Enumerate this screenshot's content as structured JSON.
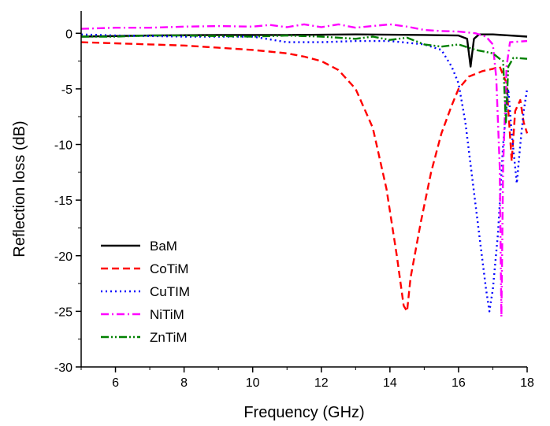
{
  "chart_data": {
    "type": "line",
    "title": "",
    "xlabel": "Frequency (GHz)",
    "ylabel": "Reflection loss (dB)",
    "xlim": [
      5,
      18
    ],
    "ylim": [
      -30,
      2
    ],
    "xticks": [
      6,
      8,
      10,
      12,
      14,
      16,
      18
    ],
    "yticks": [
      0,
      -5,
      -10,
      -15,
      -20,
      -25,
      -30
    ],
    "legend_position": "bottom-left",
    "grid": false,
    "series": [
      {
        "name": "BaM",
        "color": "#000000",
        "dash": "solid",
        "points": [
          [
            5,
            -0.3
          ],
          [
            7,
            -0.2
          ],
          [
            9,
            -0.15
          ],
          [
            11,
            -0.15
          ],
          [
            13,
            -0.1
          ],
          [
            15,
            -0.15
          ],
          [
            16,
            -0.2
          ],
          [
            16.25,
            -0.5
          ],
          [
            16.35,
            -3.0
          ],
          [
            16.45,
            -0.5
          ],
          [
            16.6,
            -0.1
          ],
          [
            17,
            -0.1
          ],
          [
            17.5,
            -0.2
          ],
          [
            18,
            -0.3
          ]
        ]
      },
      {
        "name": "CoTiM",
        "color": "#ff0000",
        "dash": "dashed",
        "points": [
          [
            5,
            -0.8
          ],
          [
            6,
            -0.9
          ],
          [
            7,
            -1.0
          ],
          [
            8,
            -1.1
          ],
          [
            9,
            -1.3
          ],
          [
            10,
            -1.5
          ],
          [
            11,
            -1.8
          ],
          [
            11.5,
            -2.1
          ],
          [
            12,
            -2.5
          ],
          [
            12.5,
            -3.3
          ],
          [
            13,
            -5.0
          ],
          [
            13.5,
            -8.5
          ],
          [
            13.9,
            -14
          ],
          [
            14.2,
            -20
          ],
          [
            14.4,
            -24.5
          ],
          [
            14.5,
            -25.0
          ],
          [
            14.6,
            -22
          ],
          [
            14.9,
            -17
          ],
          [
            15.2,
            -12.5
          ],
          [
            15.5,
            -9
          ],
          [
            15.8,
            -6.5
          ],
          [
            16,
            -5
          ],
          [
            16.3,
            -3.9
          ],
          [
            16.7,
            -3.4
          ],
          [
            17.0,
            -3.2
          ],
          [
            17.2,
            -3.0
          ],
          [
            17.4,
            -4.5
          ],
          [
            17.55,
            -11.5
          ],
          [
            17.65,
            -7
          ],
          [
            17.8,
            -6
          ],
          [
            17.9,
            -8
          ],
          [
            18,
            -9
          ]
        ]
      },
      {
        "name": "CuTIM",
        "color": "#0000ff",
        "dash": "dotted",
        "points": [
          [
            5,
            -0.1
          ],
          [
            6,
            -0.2
          ],
          [
            8,
            -0.3
          ],
          [
            10,
            -0.3
          ],
          [
            11,
            -0.8
          ],
          [
            12,
            -0.8
          ],
          [
            13,
            -0.7
          ],
          [
            14,
            -0.7
          ],
          [
            15,
            -1.0
          ],
          [
            15.5,
            -1.5
          ],
          [
            15.8,
            -3.0
          ],
          [
            16,
            -4.5
          ],
          [
            16.2,
            -8
          ],
          [
            16.4,
            -13
          ],
          [
            16.6,
            -18
          ],
          [
            16.8,
            -23
          ],
          [
            16.9,
            -25.0
          ],
          [
            17.0,
            -23
          ],
          [
            17.15,
            -18
          ],
          [
            17.3,
            -10
          ],
          [
            17.45,
            -5
          ],
          [
            17.55,
            -9
          ],
          [
            17.7,
            -13.5
          ],
          [
            17.8,
            -10
          ],
          [
            17.9,
            -7
          ],
          [
            18,
            -5
          ]
        ]
      },
      {
        "name": "NiTiM",
        "color": "#ff00ff",
        "dash": "dashdot",
        "points": [
          [
            5,
            0.4
          ],
          [
            6,
            0.5
          ],
          [
            7,
            0.5
          ],
          [
            8,
            0.6
          ],
          [
            9,
            0.65
          ],
          [
            10,
            0.6
          ],
          [
            10.5,
            0.75
          ],
          [
            11,
            0.55
          ],
          [
            11.5,
            0.8
          ],
          [
            12,
            0.55
          ],
          [
            12.5,
            0.8
          ],
          [
            13,
            0.5
          ],
          [
            14,
            0.8
          ],
          [
            14.5,
            0.6
          ],
          [
            15,
            0.3
          ],
          [
            15.5,
            0.2
          ],
          [
            16,
            0.15
          ],
          [
            16.5,
            0.0
          ],
          [
            16.8,
            -0.3
          ],
          [
            17.0,
            -1.0
          ],
          [
            17.1,
            -4
          ],
          [
            17.2,
            -12
          ],
          [
            17.25,
            -25.5
          ],
          [
            17.3,
            -12
          ],
          [
            17.4,
            -3
          ],
          [
            17.5,
            -0.8
          ],
          [
            18,
            -0.7
          ]
        ]
      },
      {
        "name": "ZnTiM",
        "color": "#008000",
        "dash": "dashdotdot",
        "points": [
          [
            5,
            -0.3
          ],
          [
            6,
            -0.3
          ],
          [
            7,
            -0.2
          ],
          [
            8,
            -0.2
          ],
          [
            9,
            -0.25
          ],
          [
            10,
            -0.3
          ],
          [
            11,
            -0.2
          ],
          [
            12,
            -0.3
          ],
          [
            13,
            -0.5
          ],
          [
            13.5,
            -0.3
          ],
          [
            14,
            -0.6
          ],
          [
            14.5,
            -0.4
          ],
          [
            15,
            -1.0
          ],
          [
            15.5,
            -1.2
          ],
          [
            16,
            -1.0
          ],
          [
            16.5,
            -1.5
          ],
          [
            17,
            -1.8
          ],
          [
            17.2,
            -2.3
          ],
          [
            17.3,
            -2.5
          ],
          [
            17.38,
            -8
          ],
          [
            17.45,
            -3
          ],
          [
            17.6,
            -2.2
          ],
          [
            18,
            -2.3
          ]
        ]
      }
    ]
  }
}
